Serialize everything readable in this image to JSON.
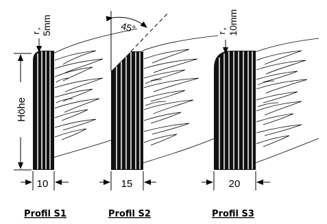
{
  "profiles": [
    {
      "caption": "Profil S1",
      "width_label": "10",
      "radius_symbol": "r",
      "radius_sub": "*",
      "radius_value": "5mm"
    },
    {
      "caption": "Profil S2",
      "width_label": "15",
      "angle_label": "45°"
    },
    {
      "caption": "Profil S3",
      "width_label": "20",
      "radius_symbol": "r",
      "radius_sub": "*",
      "radius_value": "10mm"
    }
  ],
  "height_label": "Höhe"
}
